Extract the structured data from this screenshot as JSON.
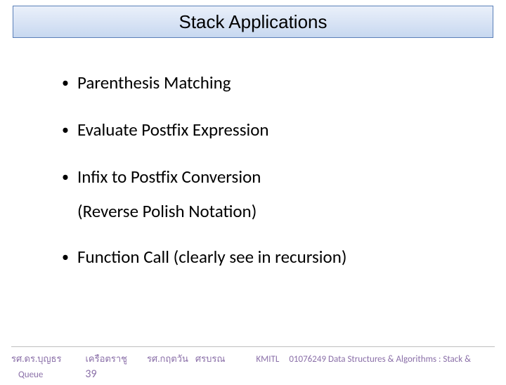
{
  "title": "Stack Applications",
  "bullets": {
    "b1": "Parenthesis Matching",
    "b2": "Evaluate Postfix Expression",
    "b3": "Infix to Postfix Conversion",
    "b3sub": "(Reverse Polish Notation)",
    "b4": "Function Call (clearly see in recursion)"
  },
  "footer": {
    "author1": "รศ.ดร.บุญธร",
    "author1b": "เครือตราชู",
    "author2": "รศ.กฤตวัน",
    "author2b": "ศรบรณ",
    "inst": "KMITL",
    "course": "01076249 Data Structures & Algorithms : Stack &",
    "queue": "Queue",
    "page": "39"
  },
  "colors": {
    "title_gradient_top": "#eaf0fa",
    "title_gradient_bottom": "#c7d8f0",
    "title_border": "#5a7fb8",
    "footer_text": "#8a6fa8",
    "footer_line": "#bfbfbf"
  }
}
